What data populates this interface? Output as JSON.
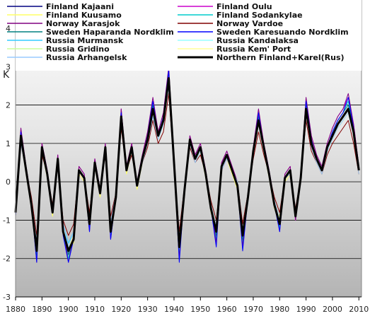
{
  "chart_data": {
    "type": "line",
    "title": "",
    "xlabel": "",
    "ylabel": "K",
    "xlim": [
      1880,
      2011
    ],
    "ylim": [
      -3,
      4
    ],
    "x_ticks": [
      1880,
      1890,
      1900,
      1910,
      1920,
      1930,
      1940,
      1950,
      1960,
      1970,
      1980,
      1990,
      2000,
      2010
    ],
    "y_ticks": [
      -3,
      -2,
      -1,
      0,
      1,
      2,
      3,
      4
    ],
    "grid": "horizontal",
    "legend_position": "top",
    "background": "grey-gradient",
    "x": [
      1880,
      1882,
      1884,
      1886,
      1888,
      1890,
      1892,
      1894,
      1896,
      1898,
      1900,
      1902,
      1904,
      1906,
      1908,
      1910,
      1912,
      1914,
      1916,
      1918,
      1920,
      1922,
      1924,
      1926,
      1928,
      1930,
      1932,
      1934,
      1936,
      1938,
      1940,
      1942,
      1944,
      1946,
      1948,
      1950,
      1952,
      1954,
      1956,
      1958,
      1960,
      1962,
      1964,
      1966,
      1968,
      1970,
      1972,
      1974,
      1976,
      1978,
      1980,
      1982,
      1984,
      1986,
      1988,
      1990,
      1992,
      1994,
      1996,
      1998,
      2000,
      2002,
      2004,
      2006,
      2008,
      2010
    ],
    "series": [
      {
        "name": "Finland Kajaani",
        "color": "#000080",
        "values": [
          -0.8,
          1.2,
          0.3,
          -0.6,
          -1.8,
          0.9,
          0.2,
          -0.8,
          0.6,
          -1.3,
          -1.8,
          -1.5,
          0.3,
          0.1,
          -1.0,
          0.5,
          -0.3,
          0.9,
          -1.2,
          -0.4,
          1.7,
          0.3,
          0.9,
          -0.1,
          0.6,
          1.1,
          1.9,
          1.2,
          1.6,
          2.7,
          0.5,
          -1.5,
          -0.2,
          1.1,
          0.6,
          0.9,
          0.2,
          -0.7,
          -1.3,
          0.4,
          0.7,
          0.3,
          -0.1,
          -1.4,
          -0.4,
          0.8,
          1.6,
          0.9,
          0.2,
          -0.6,
          -1.0,
          0.1,
          0.3,
          -0.9,
          0.1,
          1.9,
          1.0,
          0.6,
          0.3,
          0.9,
          1.2,
          1.5,
          1.7,
          1.9,
          1.3,
          0.3
        ]
      },
      {
        "name": "Finland Oulu",
        "color": "#cc00cc",
        "values": [
          -0.7,
          1.3,
          0.4,
          -0.5,
          -1.9,
          1.0,
          0.3,
          -0.7,
          0.7,
          -1.2,
          -1.9,
          -1.4,
          0.4,
          0.2,
          -1.1,
          0.6,
          -0.2,
          1.0,
          -1.1,
          -0.3,
          1.9,
          0.4,
          1.0,
          0.0,
          0.7,
          1.3,
          2.1,
          1.3,
          1.8,
          2.9,
          0.6,
          -1.6,
          -0.1,
          1.2,
          0.7,
          1.0,
          0.3,
          -0.6,
          -1.4,
          0.5,
          0.8,
          0.4,
          0.0,
          -1.5,
          -0.3,
          0.9,
          1.8,
          1.0,
          0.3,
          -0.5,
          -1.1,
          0.2,
          0.4,
          -1.0,
          0.2,
          2.1,
          1.2,
          0.7,
          0.4,
          1.0,
          1.4,
          1.7,
          1.9,
          2.2,
          1.5,
          0.4
        ]
      },
      {
        "name": "Finland Kuusamo",
        "color": "#ffff66",
        "values": [
          -0.9,
          1.1,
          0.2,
          -0.7,
          -1.7,
          0.8,
          0.1,
          -0.9,
          0.5,
          -1.4,
          -1.7,
          -1.6,
          0.2,
          0.0,
          -1.2,
          0.4,
          -0.4,
          0.8,
          -1.3,
          -0.5,
          1.6,
          0.2,
          0.8,
          -0.2,
          0.5,
          1.0,
          1.8,
          1.1,
          1.5,
          2.6,
          0.4,
          -1.8,
          -0.3,
          1.0,
          0.5,
          0.8,
          0.1,
          -0.8,
          -1.2,
          0.3,
          0.6,
          0.2,
          -0.2,
          -1.3,
          -0.5,
          0.7,
          1.5,
          0.8,
          0.1,
          -0.7,
          -0.9,
          0.0,
          0.2,
          -0.8,
          0.0,
          1.8,
          0.9,
          0.5,
          0.2,
          0.8,
          1.1,
          1.4,
          1.6,
          1.8,
          1.2,
          0.2
        ]
      },
      {
        "name": "Finland Sodankylae",
        "color": "#00cccc",
        "values": [
          -0.8,
          1.3,
          0.3,
          -0.6,
          -2.0,
          0.9,
          0.2,
          -0.8,
          0.6,
          -1.3,
          -2.0,
          -1.5,
          0.3,
          0.1,
          -1.2,
          0.5,
          -0.3,
          0.9,
          -1.4,
          -0.4,
          1.8,
          0.3,
          0.9,
          -0.1,
          0.6,
          1.2,
          2.0,
          1.2,
          1.7,
          2.8,
          0.5,
          -1.9,
          -0.2,
          1.1,
          0.6,
          0.9,
          0.2,
          -0.7,
          -1.5,
          0.4,
          0.7,
          0.3,
          -0.1,
          -1.6,
          -0.4,
          0.8,
          1.7,
          0.9,
          0.2,
          -0.6,
          -1.2,
          0.1,
          0.3,
          -0.9,
          0.1,
          2.0,
          1.1,
          0.6,
          0.3,
          0.9,
          1.3,
          1.6,
          1.8,
          2.1,
          1.4,
          0.3
        ]
      },
      {
        "name": "Norway Karasjok",
        "color": "#800080",
        "values": [
          -0.7,
          1.4,
          0.4,
          -0.5,
          -2.1,
          1.0,
          0.3,
          -0.7,
          0.7,
          -1.2,
          -2.1,
          -1.4,
          0.4,
          0.2,
          -1.3,
          0.6,
          -0.2,
          1.0,
          -1.5,
          -0.3,
          1.9,
          0.4,
          1.0,
          0.0,
          0.7,
          1.3,
          2.2,
          1.3,
          1.8,
          3.0,
          0.6,
          -2.0,
          -0.1,
          1.2,
          0.7,
          1.0,
          0.3,
          -0.6,
          -1.6,
          0.5,
          0.8,
          0.4,
          0.0,
          -1.7,
          -0.3,
          0.9,
          1.9,
          1.0,
          0.3,
          -0.5,
          -1.3,
          0.2,
          0.4,
          -1.0,
          0.2,
          2.2,
          1.2,
          0.7,
          0.4,
          1.0,
          1.4,
          1.7,
          1.9,
          2.3,
          1.5,
          0.4
        ]
      },
      {
        "name": "Norway Vardoe",
        "color": "#800000",
        "values": [
          -0.6,
          1.0,
          0.3,
          -0.4,
          -1.4,
          0.7,
          0.2,
          -0.6,
          0.5,
          -1.0,
          -1.4,
          -1.1,
          0.3,
          0.1,
          -0.8,
          0.4,
          -0.2,
          0.7,
          -0.9,
          -0.3,
          1.4,
          0.3,
          0.7,
          0.0,
          0.5,
          0.9,
          1.6,
          1.0,
          1.3,
          2.3,
          0.4,
          -1.3,
          -0.1,
          0.9,
          0.5,
          0.7,
          0.2,
          -0.5,
          -1.0,
          0.3,
          0.6,
          0.3,
          0.0,
          -1.1,
          -0.3,
          0.6,
          1.3,
          0.7,
          0.2,
          -0.4,
          -0.8,
          0.1,
          0.2,
          -0.7,
          0.1,
          1.6,
          0.8,
          0.5,
          0.2,
          0.7,
          1.0,
          1.2,
          1.4,
          1.6,
          1.0,
          0.2
        ]
      },
      {
        "name": "Sweden Haparanda Nordklim",
        "color": "#008080",
        "values": [
          -0.8,
          1.2,
          0.3,
          -0.6,
          -1.9,
          0.9,
          0.2,
          -0.8,
          0.6,
          -1.3,
          -1.9,
          -1.5,
          0.3,
          0.1,
          -1.1,
          0.5,
          -0.3,
          0.9,
          -1.2,
          -0.4,
          1.8,
          0.3,
          0.9,
          -0.1,
          0.6,
          1.2,
          2.0,
          1.2,
          1.7,
          2.8,
          0.5,
          -1.6,
          -0.2,
          1.1,
          0.6,
          0.9,
          0.2,
          -0.7,
          -1.4,
          0.4,
          0.7,
          0.3,
          -0.1,
          -1.5,
          -0.4,
          0.8,
          1.7,
          0.9,
          0.2,
          -0.6,
          -1.1,
          0.1,
          0.3,
          -0.9,
          0.1,
          2.0,
          1.1,
          0.6,
          0.3,
          0.9,
          1.3,
          1.6,
          1.8,
          2.0,
          1.4,
          0.3
        ]
      },
      {
        "name": "Sweden Karesuando Nordklim",
        "color": "#0000ff",
        "values": [
          -0.9,
          1.3,
          0.3,
          -0.6,
          -2.1,
          0.9,
          0.2,
          -0.8,
          0.6,
          -1.4,
          -2.1,
          -1.5,
          0.3,
          0.1,
          -1.3,
          0.5,
          -0.3,
          0.9,
          -1.5,
          -0.4,
          1.8,
          0.3,
          0.9,
          -0.1,
          0.6,
          1.2,
          2.1,
          1.2,
          1.7,
          2.9,
          0.5,
          -2.1,
          -0.2,
          1.1,
          0.6,
          0.9,
          0.2,
          -0.7,
          -1.7,
          0.4,
          0.7,
          0.3,
          -0.1,
          -1.8,
          -0.4,
          0.8,
          1.8,
          0.9,
          0.2,
          -0.6,
          -1.3,
          0.1,
          0.3,
          -0.9,
          0.1,
          2.1,
          1.1,
          0.6,
          0.3,
          0.9,
          1.3,
          1.6,
          1.8,
          2.2,
          1.4,
          0.3
        ]
      },
      {
        "name": "Russia Murmansk",
        "color": "#33ccff",
        "values": [
          -0.7,
          1.1,
          0.3,
          -0.5,
          -1.6,
          0.8,
          0.2,
          -0.7,
          0.6,
          -1.1,
          -1.6,
          -1.3,
          0.3,
          0.1,
          -1.0,
          0.5,
          -0.2,
          0.8,
          -1.1,
          -0.3,
          1.6,
          0.3,
          0.8,
          0.0,
          0.6,
          1.1,
          1.8,
          1.1,
          1.5,
          2.6,
          0.5,
          -1.5,
          -0.1,
          1.0,
          0.6,
          0.8,
          0.2,
          -0.6,
          -1.2,
          0.4,
          0.7,
          0.3,
          0.0,
          -1.3,
          -0.3,
          0.7,
          1.5,
          0.8,
          0.2,
          -0.5,
          -1.0,
          0.1,
          0.3,
          -0.8,
          0.1,
          1.8,
          1.0,
          0.6,
          0.3,
          0.8,
          1.2,
          1.4,
          1.6,
          1.8,
          1.2,
          0.3
        ]
      },
      {
        "name": "Russia Kandalaksa",
        "color": "#99ffff",
        "values": [
          -0.8,
          1.2,
          0.3,
          -0.6,
          -1.8,
          0.9,
          0.2,
          -0.8,
          0.6,
          -1.3,
          -1.8,
          -1.5,
          0.3,
          0.1,
          -1.1,
          0.5,
          -0.3,
          0.9,
          -1.3,
          -0.4,
          1.7,
          0.3,
          0.9,
          -0.1,
          0.6,
          1.1,
          1.9,
          1.2,
          1.6,
          2.7,
          0.5,
          -1.7,
          -0.2,
          1.1,
          0.6,
          0.9,
          0.2,
          -0.7,
          -1.3,
          0.4,
          0.7,
          0.3,
          -0.1,
          -1.4,
          -0.4,
          0.8,
          1.6,
          0.9,
          0.2,
          -0.6,
          -1.1,
          0.1,
          0.3,
          -0.9,
          0.1,
          1.9,
          1.0,
          0.6,
          0.3,
          0.9,
          1.2,
          1.5,
          1.7,
          1.9,
          1.3,
          0.3
        ]
      },
      {
        "name": "Russia Gridino",
        "color": "#ccff99",
        "values": [
          -0.8,
          1.1,
          0.3,
          -0.6,
          -1.7,
          0.8,
          0.2,
          -0.8,
          0.6,
          -1.2,
          -1.7,
          -1.4,
          0.3,
          0.1,
          -1.0,
          0.5,
          -0.3,
          0.8,
          -1.2,
          -0.4,
          1.6,
          0.3,
          0.8,
          -0.1,
          0.6,
          1.1,
          1.8,
          1.1,
          1.5,
          2.6,
          0.5,
          -1.6,
          -0.2,
          1.0,
          0.6,
          0.8,
          0.2,
          -0.7,
          -1.2,
          0.4,
          0.7,
          0.3,
          -0.1,
          -1.3,
          -0.4,
          0.7,
          1.5,
          0.8,
          0.2,
          -0.6,
          -1.0,
          0.1,
          0.3,
          -0.8,
          0.1,
          1.8,
          1.0,
          0.6,
          0.3,
          0.8,
          1.2,
          1.4,
          1.6,
          1.8,
          1.2,
          0.3
        ]
      },
      {
        "name": "Russia Kem' Port",
        "color": "#ffff99",
        "values": [
          -0.7,
          1.1,
          0.3,
          -0.5,
          -1.7,
          0.8,
          0.2,
          -0.7,
          0.6,
          -1.2,
          -1.7,
          -1.4,
          0.3,
          0.1,
          -1.0,
          0.5,
          -0.2,
          0.8,
          -1.2,
          -0.3,
          1.6,
          0.3,
          0.8,
          0.0,
          0.6,
          1.1,
          1.8,
          1.1,
          1.5,
          2.6,
          0.5,
          -1.6,
          -0.1,
          1.0,
          0.6,
          0.8,
          0.2,
          -0.6,
          -1.2,
          0.4,
          0.7,
          0.3,
          0.0,
          -1.3,
          -0.3,
          0.7,
          1.5,
          0.8,
          0.2,
          -0.5,
          -1.0,
          0.1,
          0.3,
          -0.8,
          0.1,
          1.8,
          1.0,
          0.6,
          0.3,
          0.8,
          1.2,
          1.4,
          1.6,
          1.8,
          1.2,
          0.3
        ]
      },
      {
        "name": "Russia Arhangelsk",
        "color": "#99ccff",
        "values": [
          -0.7,
          1.0,
          0.3,
          -0.5,
          -1.6,
          0.8,
          0.2,
          -0.7,
          0.5,
          -1.1,
          -1.7,
          -1.3,
          0.3,
          0.1,
          -1.0,
          0.4,
          -0.2,
          0.8,
          -1.1,
          -0.3,
          1.6,
          0.3,
          0.8,
          0.0,
          0.5,
          1.0,
          1.7,
          1.1,
          1.5,
          2.5,
          0.4,
          -1.6,
          -0.1,
          1.0,
          0.5,
          0.8,
          0.2,
          -0.6,
          -1.2,
          0.3,
          0.6,
          0.3,
          0.0,
          -1.3,
          -0.3,
          0.7,
          1.5,
          0.8,
          0.2,
          -0.5,
          -1.0,
          0.1,
          0.2,
          -0.8,
          0.1,
          1.8,
          0.9,
          0.5,
          0.2,
          0.8,
          1.1,
          1.4,
          1.6,
          1.8,
          1.2,
          0.2
        ]
      },
      {
        "name": "Northern Finland+Karel(Rus)",
        "color": "#000000",
        "bold": true,
        "values": [
          -0.8,
          1.2,
          0.3,
          -0.6,
          -1.8,
          0.9,
          0.2,
          -0.8,
          0.6,
          -1.3,
          -1.8,
          -1.5,
          0.3,
          0.1,
          -1.1,
          0.5,
          -0.3,
          0.9,
          -1.3,
          -0.4,
          1.7,
          0.3,
          0.9,
          -0.1,
          0.6,
          1.1,
          1.9,
          1.2,
          1.6,
          2.7,
          0.5,
          -1.7,
          -0.2,
          1.1,
          0.6,
          0.9,
          0.2,
          -0.7,
          -1.3,
          0.4,
          0.7,
          0.3,
          -0.1,
          -1.4,
          -0.4,
          0.8,
          1.6,
          0.9,
          0.2,
          -0.6,
          -1.1,
          0.1,
          0.3,
          -0.9,
          0.1,
          1.9,
          1.0,
          0.6,
          0.3,
          0.9,
          1.2,
          1.5,
          1.7,
          1.9,
          1.3,
          0.3
        ]
      }
    ]
  }
}
